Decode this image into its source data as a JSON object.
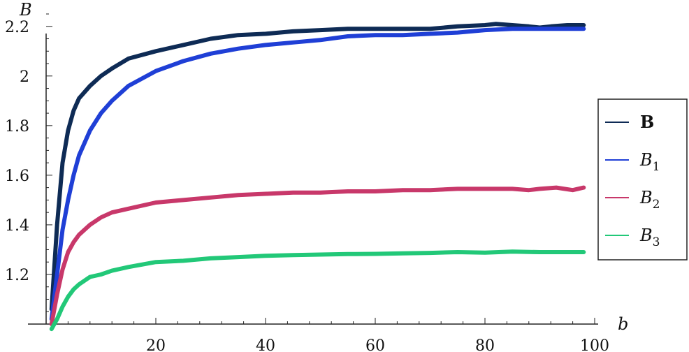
{
  "chart_data": {
    "type": "line",
    "xlabel": "b",
    "ylabel": "B",
    "xlim": [
      0,
      100
    ],
    "ylim": [
      1.0,
      2.25
    ],
    "x_ticks": [
      20,
      40,
      60,
      80,
      100
    ],
    "y_ticks": [
      1.2,
      1.4,
      1.6,
      1.8,
      2.0,
      2.2
    ],
    "x_tick_labels": [
      "20",
      "40",
      "60",
      "80",
      "100"
    ],
    "y_tick_labels": [
      "1.2",
      "1.4",
      "1.6",
      "1.8",
      "2",
      "2.2"
    ],
    "legend_position": "right",
    "series": [
      {
        "name": "B",
        "label_base": "B",
        "label_sub": "",
        "label_bold": true,
        "color": "#0e2b55",
        "points": [
          [
            1,
            1.06
          ],
          [
            2,
            1.4
          ],
          [
            3,
            1.65
          ],
          [
            4,
            1.78
          ],
          [
            5,
            1.86
          ],
          [
            6,
            1.91
          ],
          [
            8,
            1.96
          ],
          [
            10,
            2.0
          ],
          [
            12,
            2.03
          ],
          [
            15,
            2.07
          ],
          [
            20,
            2.1
          ],
          [
            25,
            2.125
          ],
          [
            30,
            2.15
          ],
          [
            35,
            2.165
          ],
          [
            40,
            2.17
          ],
          [
            45,
            2.18
          ],
          [
            50,
            2.185
          ],
          [
            55,
            2.19
          ],
          [
            60,
            2.19
          ],
          [
            65,
            2.19
          ],
          [
            70,
            2.19
          ],
          [
            75,
            2.2
          ],
          [
            80,
            2.205
          ],
          [
            82,
            2.21
          ],
          [
            85,
            2.205
          ],
          [
            88,
            2.2
          ],
          [
            90,
            2.195
          ],
          [
            92,
            2.2
          ],
          [
            95,
            2.205
          ],
          [
            98,
            2.205
          ]
        ]
      },
      {
        "name": "B1",
        "label_base": "B",
        "label_sub": "1",
        "label_bold": false,
        "color": "#1f3fd6",
        "points": [
          [
            1,
            1.02
          ],
          [
            2,
            1.2
          ],
          [
            3,
            1.38
          ],
          [
            4,
            1.5
          ],
          [
            5,
            1.6
          ],
          [
            6,
            1.68
          ],
          [
            8,
            1.78
          ],
          [
            10,
            1.85
          ],
          [
            12,
            1.9
          ],
          [
            15,
            1.96
          ],
          [
            20,
            2.02
          ],
          [
            25,
            2.06
          ],
          [
            30,
            2.09
          ],
          [
            35,
            2.11
          ],
          [
            40,
            2.125
          ],
          [
            45,
            2.135
          ],
          [
            50,
            2.145
          ],
          [
            55,
            2.16
          ],
          [
            60,
            2.165
          ],
          [
            65,
            2.165
          ],
          [
            70,
            2.17
          ],
          [
            75,
            2.175
          ],
          [
            80,
            2.185
          ],
          [
            85,
            2.19
          ],
          [
            90,
            2.19
          ],
          [
            95,
            2.19
          ],
          [
            98,
            2.19
          ]
        ]
      },
      {
        "name": "B2",
        "label_base": "B",
        "label_sub": "2",
        "label_bold": false,
        "color": "#c8386a",
        "points": [
          [
            1,
            1.0
          ],
          [
            2,
            1.12
          ],
          [
            3,
            1.22
          ],
          [
            4,
            1.29
          ],
          [
            5,
            1.33
          ],
          [
            6,
            1.36
          ],
          [
            8,
            1.4
          ],
          [
            10,
            1.43
          ],
          [
            12,
            1.45
          ],
          [
            15,
            1.465
          ],
          [
            20,
            1.49
          ],
          [
            25,
            1.5
          ],
          [
            30,
            1.51
          ],
          [
            35,
            1.52
          ],
          [
            40,
            1.525
          ],
          [
            45,
            1.53
          ],
          [
            50,
            1.53
          ],
          [
            55,
            1.535
          ],
          [
            60,
            1.535
          ],
          [
            65,
            1.54
          ],
          [
            70,
            1.54
          ],
          [
            75,
            1.545
          ],
          [
            80,
            1.545
          ],
          [
            85,
            1.545
          ],
          [
            88,
            1.54
          ],
          [
            90,
            1.545
          ],
          [
            93,
            1.55
          ],
          [
            96,
            1.54
          ],
          [
            98,
            1.55
          ]
        ]
      },
      {
        "name": "B3",
        "label_base": "B",
        "label_sub": "3",
        "label_bold": false,
        "color": "#22c878",
        "points": [
          [
            1,
            0.98
          ],
          [
            2,
            1.02
          ],
          [
            3,
            1.07
          ],
          [
            4,
            1.11
          ],
          [
            5,
            1.14
          ],
          [
            6,
            1.16
          ],
          [
            8,
            1.19
          ],
          [
            10,
            1.2
          ],
          [
            12,
            1.215
          ],
          [
            15,
            1.23
          ],
          [
            20,
            1.25
          ],
          [
            25,
            1.255
          ],
          [
            30,
            1.265
          ],
          [
            35,
            1.27
          ],
          [
            40,
            1.275
          ],
          [
            45,
            1.278
          ],
          [
            50,
            1.28
          ],
          [
            55,
            1.282
          ],
          [
            60,
            1.283
          ],
          [
            65,
            1.285
          ],
          [
            70,
            1.287
          ],
          [
            75,
            1.29
          ],
          [
            80,
            1.288
          ],
          [
            85,
            1.292
          ],
          [
            90,
            1.29
          ],
          [
            95,
            1.29
          ],
          [
            98,
            1.29
          ]
        ]
      }
    ]
  }
}
